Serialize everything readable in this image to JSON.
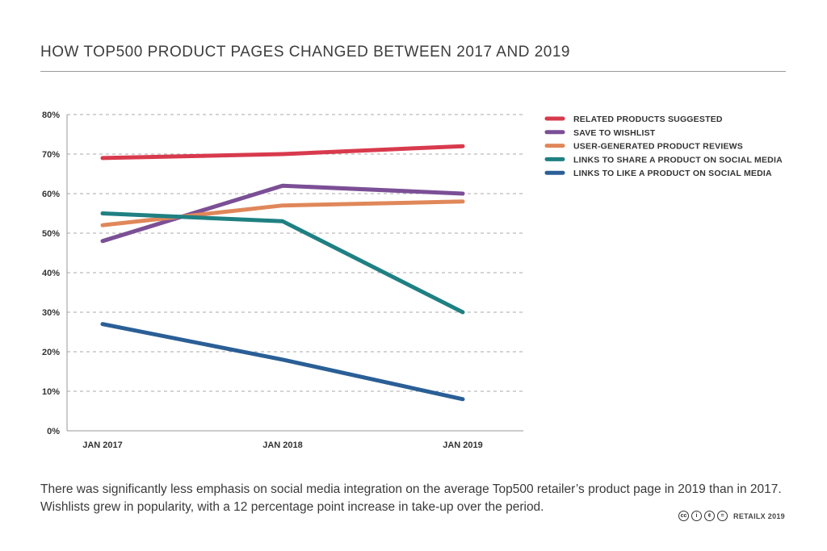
{
  "header": {
    "title": "HOW TOP500 PRODUCT PAGES CHANGED BETWEEN 2017 AND 2019"
  },
  "chart_data": {
    "type": "line",
    "categories": [
      "JAN 2017",
      "JAN 2018",
      "JAN 2019"
    ],
    "y_ticks": [
      "0%",
      "10%",
      "20%",
      "30%",
      "40%",
      "50%",
      "60%",
      "70%",
      "80%"
    ],
    "ylim": [
      0,
      80
    ],
    "grid": "horizontal dashed",
    "legend_position": "right",
    "series": [
      {
        "name": "RELATED PRODUCTS SUGGESTED",
        "color": "#d83a4d",
        "values": [
          69,
          70,
          72
        ]
      },
      {
        "name": "SAVE TO WISHLIST",
        "color": "#7b4f96",
        "values": [
          48,
          62,
          60
        ]
      },
      {
        "name": "USER-GENERATED PRODUCT REVIEWS",
        "color": "#e0875a",
        "values": [
          52,
          57,
          58
        ]
      },
      {
        "name": "LINKS TO SHARE A PRODUCT ON SOCIAL MEDIA",
        "color": "#1f8082",
        "values": [
          55,
          53,
          30
        ]
      },
      {
        "name": "LINKS TO LIKE A PRODUCT ON SOCIAL MEDIA",
        "color": "#2a5f96",
        "values": [
          27,
          18,
          8
        ]
      }
    ]
  },
  "caption": "There was significantly less emphasis on social media integration on the average Top500 retailer’s product page in 2019 than in 2017. Wishlists grew in popularity, with a 12 percentage point increase in take-up over the period.",
  "footer": {
    "license_icons": [
      "cc",
      "i",
      "¢",
      "="
    ],
    "text": "RETAILX 2019"
  }
}
